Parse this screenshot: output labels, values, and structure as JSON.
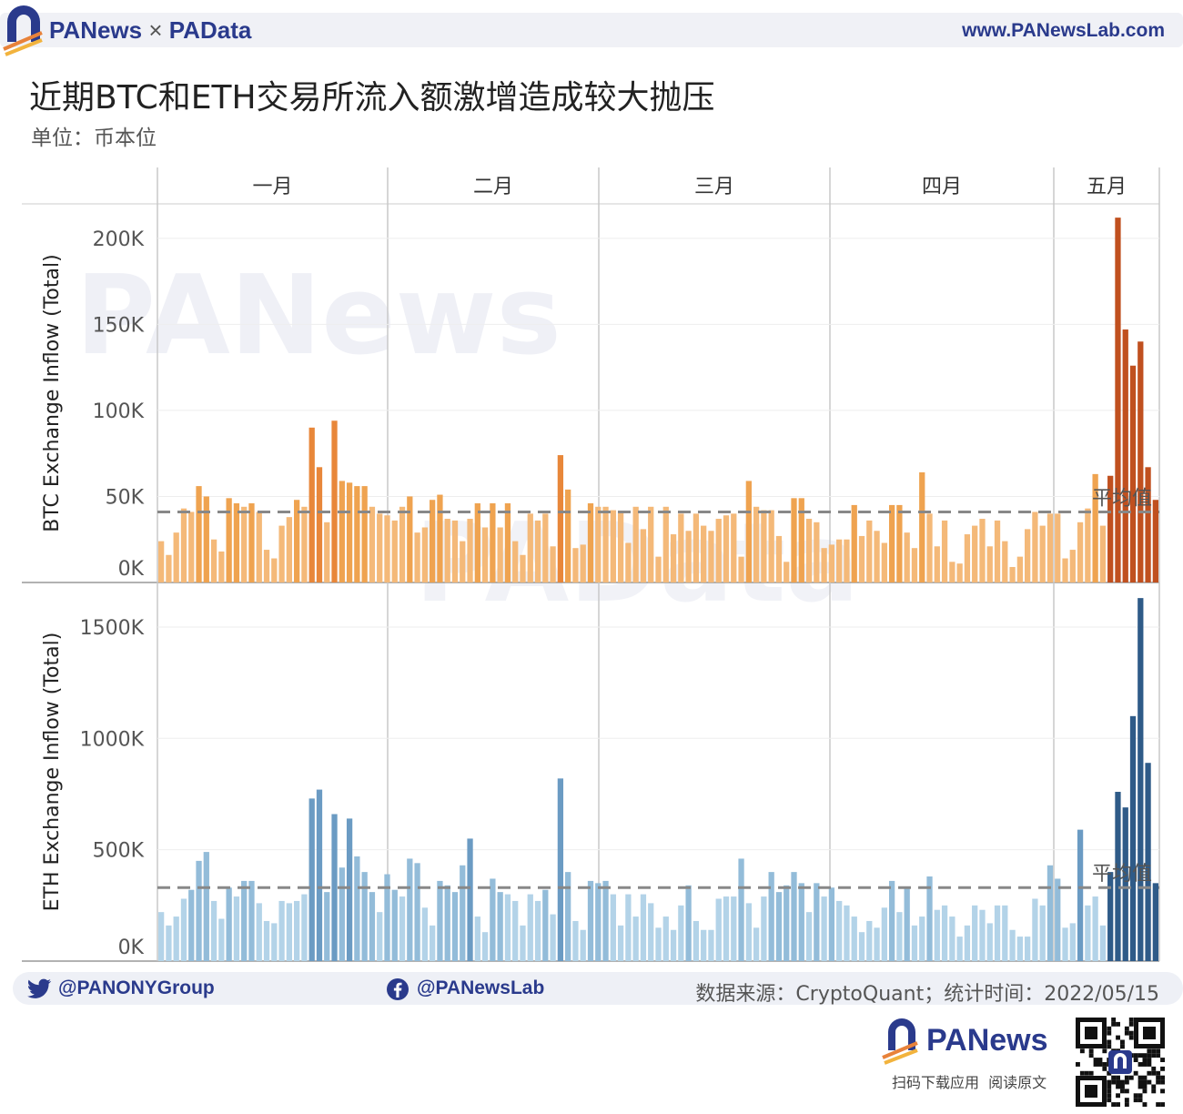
{
  "header": {
    "brand_pa": "PANews",
    "brand_sep": "×",
    "brand_pd": "PAData",
    "site": "www.PANewsLab.com"
  },
  "title": "近期BTC和ETH交易所流入额激增造成较大抛压",
  "subtitle": "单位：币本位",
  "watermark": [
    "PANews",
    "PAData"
  ],
  "chart_data": {
    "type": "bar",
    "x_months": [
      "一月",
      "二月",
      "三月",
      "四月",
      "五月"
    ],
    "avg_label": "平均值",
    "btc": {
      "ylabel": "BTC Exchange Inflow (Total)",
      "ylim": [
        0,
        220000
      ],
      "ticks": [
        0,
        50000,
        100000,
        150000,
        200000
      ],
      "tick_labels": [
        "0K",
        "50K",
        "100K",
        "150K",
        "200K"
      ],
      "average": 41000,
      "values": [
        24000,
        16000,
        29000,
        43000,
        41000,
        56000,
        50000,
        25000,
        18000,
        49000,
        46000,
        44000,
        46000,
        41000,
        19000,
        14000,
        33000,
        38000,
        48000,
        44000,
        90000,
        67000,
        35000,
        94000,
        59000,
        58000,
        56000,
        56000,
        44000,
        40000,
        39000,
        36000,
        44000,
        50000,
        29000,
        32000,
        48000,
        51000,
        37000,
        36000,
        24000,
        37000,
        46000,
        32000,
        46000,
        32000,
        46000,
        24000,
        16000,
        40000,
        36000,
        40000,
        21000,
        74000,
        54000,
        20000,
        22000,
        46000,
        44000,
        44000,
        42000,
        41000,
        23000,
        44000,
        31000,
        44000,
        15000,
        44000,
        28000,
        40000,
        30000,
        40000,
        33000,
        30000,
        37000,
        39000,
        40000,
        15000,
        59000,
        44000,
        42000,
        42000,
        27000,
        12000,
        49000,
        49000,
        37000,
        35000,
        20000,
        22000,
        25000,
        25000,
        45000,
        27000,
        36000,
        30000,
        23000,
        45000,
        45000,
        29000,
        20000,
        64000,
        40000,
        21000,
        36000,
        12000,
        11000,
        28000,
        33000,
        37000,
        21000,
        36000,
        24000,
        9000,
        15000,
        31000,
        41000,
        33000,
        40000,
        40000,
        14000,
        19000,
        35000,
        43000,
        63000,
        33000,
        62000,
        212000,
        147000,
        126000,
        140000,
        67000,
        48000
      ],
      "highlight_start": 126
    },
    "eth": {
      "ylabel": "ETH Exchange Inflow (Total)",
      "ylim": [
        0,
        1700000
      ],
      "ticks": [
        0,
        500000,
        1000000,
        1500000
      ],
      "tick_labels": [
        "0K",
        "500K",
        "1000K",
        "1500K"
      ],
      "average": 330000,
      "values": [
        220000,
        160000,
        200000,
        280000,
        320000,
        450000,
        490000,
        270000,
        190000,
        330000,
        290000,
        360000,
        360000,
        260000,
        180000,
        170000,
        270000,
        260000,
        270000,
        300000,
        730000,
        770000,
        310000,
        660000,
        420000,
        640000,
        470000,
        400000,
        310000,
        220000,
        390000,
        320000,
        290000,
        460000,
        440000,
        240000,
        160000,
        360000,
        340000,
        310000,
        430000,
        550000,
        200000,
        130000,
        370000,
        310000,
        300000,
        270000,
        160000,
        300000,
        270000,
        320000,
        210000,
        820000,
        400000,
        180000,
        140000,
        360000,
        350000,
        360000,
        300000,
        160000,
        300000,
        200000,
        300000,
        260000,
        150000,
        200000,
        140000,
        250000,
        340000,
        180000,
        140000,
        140000,
        280000,
        290000,
        290000,
        460000,
        260000,
        150000,
        290000,
        400000,
        310000,
        340000,
        400000,
        350000,
        220000,
        350000,
        290000,
        330000,
        270000,
        250000,
        200000,
        130000,
        180000,
        150000,
        240000,
        360000,
        220000,
        330000,
        160000,
        200000,
        380000,
        230000,
        250000,
        200000,
        110000,
        160000,
        250000,
        230000,
        170000,
        250000,
        250000,
        140000,
        110000,
        110000,
        280000,
        250000,
        430000,
        370000,
        150000,
        170000,
        590000,
        250000,
        290000,
        160000,
        400000,
        760000,
        690000,
        1100000,
        1630000,
        890000,
        350000
      ],
      "highlight_start": 126
    }
  }
}
